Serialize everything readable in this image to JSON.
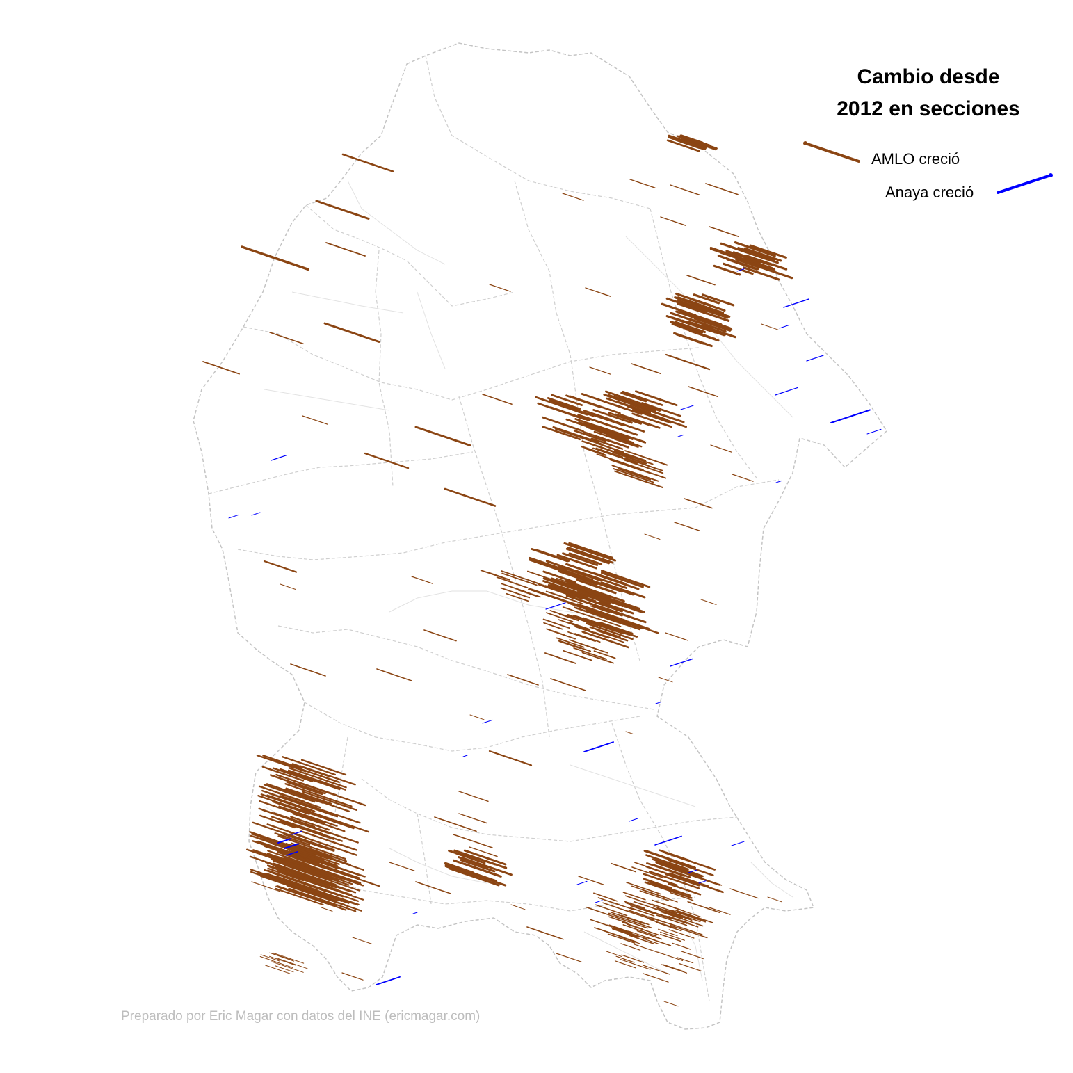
{
  "title_line1": "Cambio desde",
  "title_line2": "2012 en secciones",
  "legend": {
    "amlo": {
      "label": "AMLO creció",
      "color": "#8B4513"
    },
    "anaya": {
      "label": "Anaya creció",
      "color": "#0000FF"
    }
  },
  "credit": "Preparado por Eric Magar con datos del INE (ericmagar.com)"
}
